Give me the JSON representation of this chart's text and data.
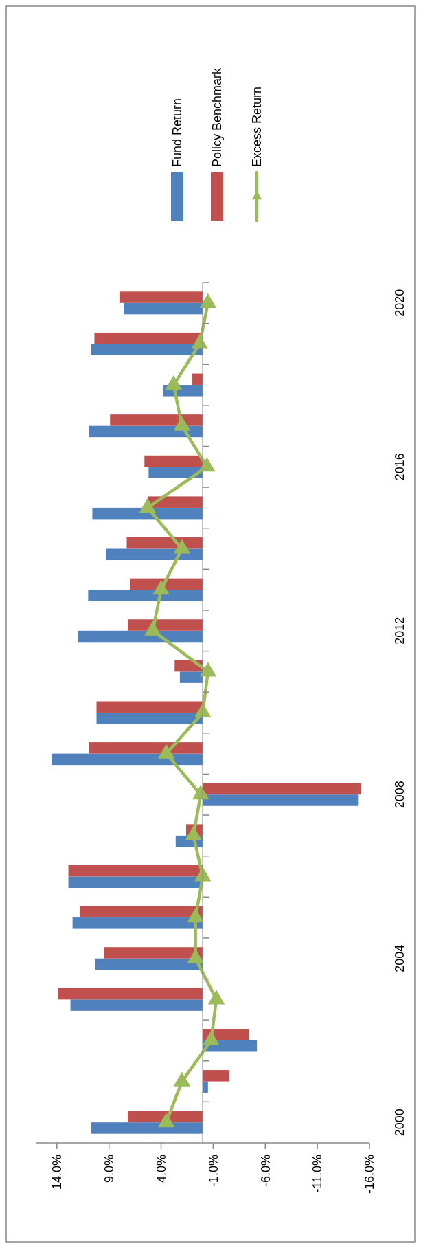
{
  "chart_data": {
    "type": "bar",
    "orientation": "horizontal",
    "categories": [
      "2020",
      null,
      null,
      null,
      "2016",
      null,
      null,
      null,
      "2012",
      null,
      null,
      null,
      "2008",
      null,
      null,
      null,
      "2004",
      null,
      null,
      null,
      "2000"
    ],
    "xlim": [
      16,
      -16
    ],
    "xticks": [
      {
        "value": 14,
        "label": "14.0%"
      },
      {
        "value": 9,
        "label": "9.0%"
      },
      {
        "value": 4,
        "label": "4.0%"
      },
      {
        "value": -1,
        "label": "-1.0%"
      },
      {
        "value": -6,
        "label": "-6.0%"
      },
      {
        "value": -11,
        "label": "-11.0%"
      },
      {
        "value": -16,
        "label": "-16.0%"
      }
    ],
    "series": [
      {
        "name": "Fund Return",
        "color": "#4f81bd",
        "values": [
          7.6,
          10.7,
          3.8,
          10.9,
          5.2,
          10.6,
          9.3,
          11.0,
          12.0,
          2.2,
          10.2,
          14.5,
          -14.9,
          2.6,
          12.9,
          12.5,
          10.3,
          12.7,
          -5.2,
          -0.5,
          10.7
        ]
      },
      {
        "name": "Policy Benchmark",
        "color": "#c0504d",
        "values": [
          8.0,
          10.4,
          1.0,
          8.9,
          5.6,
          5.3,
          7.3,
          7.0,
          7.2,
          2.7,
          10.2,
          10.9,
          -15.2,
          1.6,
          12.9,
          11.8,
          9.5,
          13.9,
          -4.4,
          -2.5,
          7.2
        ]
      },
      {
        "name": "Excess Return",
        "color": "#9bbb59",
        "type": "line",
        "marker": "triangle",
        "values": [
          -0.5,
          0.3,
          2.8,
          2.0,
          -0.4,
          5.3,
          2.0,
          4.0,
          4.8,
          -0.5,
          0.0,
          3.5,
          0.2,
          0.9,
          0.0,
          0.7,
          0.7,
          -1.3,
          -0.8,
          2.0,
          3.5
        ]
      }
    ],
    "grid": false,
    "legend": "top"
  }
}
